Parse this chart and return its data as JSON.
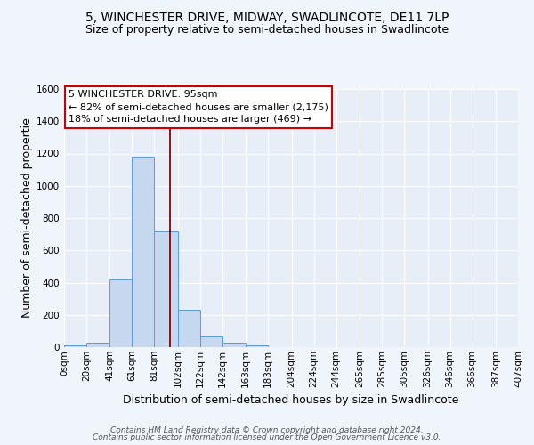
{
  "title": "5, WINCHESTER DRIVE, MIDWAY, SWADLINCOTE, DE11 7LP",
  "subtitle": "Size of property relative to semi-detached houses in Swadlincote",
  "xlabel": "Distribution of semi-detached houses by size in Swadlincote",
  "ylabel": "Number of semi-detached propertie",
  "footer_line1": "Contains HM Land Registry data © Crown copyright and database right 2024.",
  "footer_line2": "Contains public sector information licensed under the Open Government Licence v3.0.",
  "annotation_title": "5 WINCHESTER DRIVE: 95sqm",
  "annotation_line2": "← 82% of semi-detached houses are smaller (2,175)",
  "annotation_line3": "18% of semi-detached houses are larger (469) →",
  "property_size": 95,
  "bin_edges": [
    0,
    20,
    41,
    61,
    81,
    102,
    122,
    142,
    163,
    183,
    204,
    224,
    244,
    265,
    285,
    305,
    326,
    346,
    366,
    387,
    407
  ],
  "bin_labels": [
    "0sqm",
    "20sqm",
    "41sqm",
    "61sqm",
    "81sqm",
    "102sqm",
    "122sqm",
    "142sqm",
    "163sqm",
    "183sqm",
    "204sqm",
    "224sqm",
    "244sqm",
    "265sqm",
    "285sqm",
    "305sqm",
    "326sqm",
    "346sqm",
    "366sqm",
    "387sqm",
    "407sqm"
  ],
  "counts": [
    10,
    25,
    420,
    1180,
    715,
    230,
    65,
    28,
    12,
    0,
    0,
    0,
    0,
    0,
    0,
    0,
    0,
    0,
    0,
    0
  ],
  "bar_color": "#c5d8f0",
  "bar_edge_color": "#5b9bd5",
  "vline_color": "#8b0000",
  "vline_x": 95,
  "ylim": [
    0,
    1600
  ],
  "yticks": [
    0,
    200,
    400,
    600,
    800,
    1000,
    1200,
    1400,
    1600
  ],
  "bg_color": "#f0f4fb",
  "plot_bg_color": "#e8eef8",
  "grid_color": "#ffffff",
  "annotation_box_color": "#ffffff",
  "annotation_box_edge": "#cc0000",
  "title_fontsize": 10,
  "subtitle_fontsize": 9,
  "axis_label_fontsize": 9,
  "tick_fontsize": 7.5,
  "annotation_fontsize": 8,
  "footer_fontsize": 6.5
}
